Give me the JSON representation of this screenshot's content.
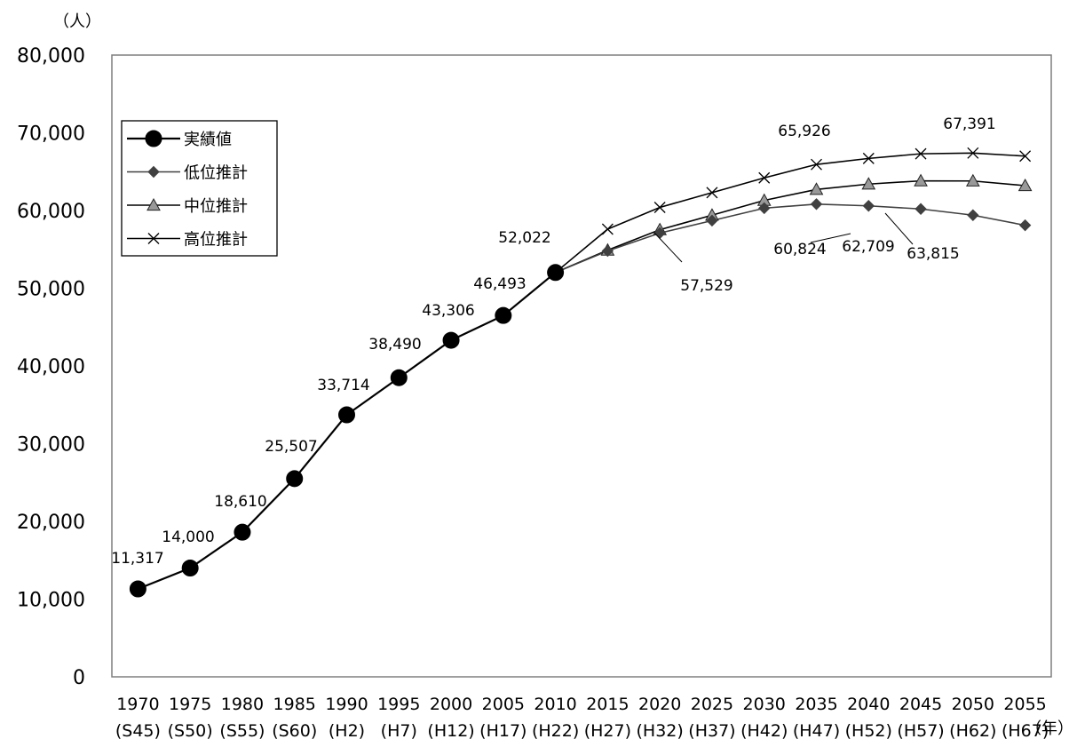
{
  "chart_data": {
    "type": "line",
    "y_unit": "（人）",
    "x_unit": "（年）",
    "ylim": [
      0,
      80000
    ],
    "yticks": [
      "0",
      "10,000",
      "20,000",
      "30,000",
      "40,000",
      "50,000",
      "60,000",
      "70,000",
      "80,000"
    ],
    "grid": false,
    "legend_position": "left",
    "categories": [
      {
        "year": "1970",
        "era": "(S45)"
      },
      {
        "year": "1975",
        "era": "(S50)"
      },
      {
        "year": "1980",
        "era": "(S55)"
      },
      {
        "year": "1985",
        "era": "(S60)"
      },
      {
        "year": "1990",
        "era": "(H2)"
      },
      {
        "year": "1995",
        "era": "(H7)"
      },
      {
        "year": "2000",
        "era": "(H12)"
      },
      {
        "year": "2005",
        "era": "(H17)"
      },
      {
        "year": "2010",
        "era": "(H22)"
      },
      {
        "year": "2015",
        "era": "(H27)"
      },
      {
        "year": "2020",
        "era": "(H32)"
      },
      {
        "year": "2025",
        "era": "(H37)"
      },
      {
        "year": "2030",
        "era": "(H42)"
      },
      {
        "year": "2035",
        "era": "(H47)"
      },
      {
        "year": "2040",
        "era": "(H52)"
      },
      {
        "year": "2045",
        "era": "(H57)"
      },
      {
        "year": "2050",
        "era": "(H62)"
      },
      {
        "year": "2055",
        "era": "(H67)"
      }
    ],
    "series": [
      {
        "name": "実績値",
        "marker": "circle",
        "color": "#000000",
        "values": [
          11317,
          14000,
          18610,
          25507,
          33714,
          38490,
          43306,
          46493,
          52022,
          null,
          null,
          null,
          null,
          null,
          null,
          null,
          null,
          null
        ]
      },
      {
        "name": "低位推計",
        "marker": "diamond",
        "color": "#404040",
        "values": [
          null,
          null,
          null,
          null,
          null,
          null,
          null,
          null,
          52022,
          54800,
          57100,
          58700,
          60300,
          60824,
          60600,
          60200,
          59400,
          58100
        ]
      },
      {
        "name": "中位推計",
        "marker": "triangle",
        "color": "#000000",
        "values": [
          null,
          null,
          null,
          null,
          null,
          null,
          null,
          null,
          52022,
          54900,
          57529,
          59400,
          61300,
          62709,
          63400,
          63815,
          63800,
          63200
        ]
      },
      {
        "name": "高位推計",
        "marker": "x",
        "color": "#000000",
        "values": [
          null,
          null,
          null,
          null,
          null,
          null,
          null,
          null,
          52022,
          57600,
          60400,
          62300,
          64200,
          65926,
          66700,
          67300,
          67391,
          67000
        ]
      }
    ],
    "annotations": [
      {
        "text": "11,317"
      },
      {
        "text": "14,000"
      },
      {
        "text": "18,610"
      },
      {
        "text": "25,507"
      },
      {
        "text": "33,714"
      },
      {
        "text": "38,490"
      },
      {
        "text": "43,306"
      },
      {
        "text": "46,493"
      },
      {
        "text": "52,022"
      },
      {
        "text": "57,529"
      },
      {
        "text": "60,824"
      },
      {
        "text": "62,709"
      },
      {
        "text": "63,815"
      },
      {
        "text": "65,926"
      },
      {
        "text": "67,391"
      }
    ]
  }
}
